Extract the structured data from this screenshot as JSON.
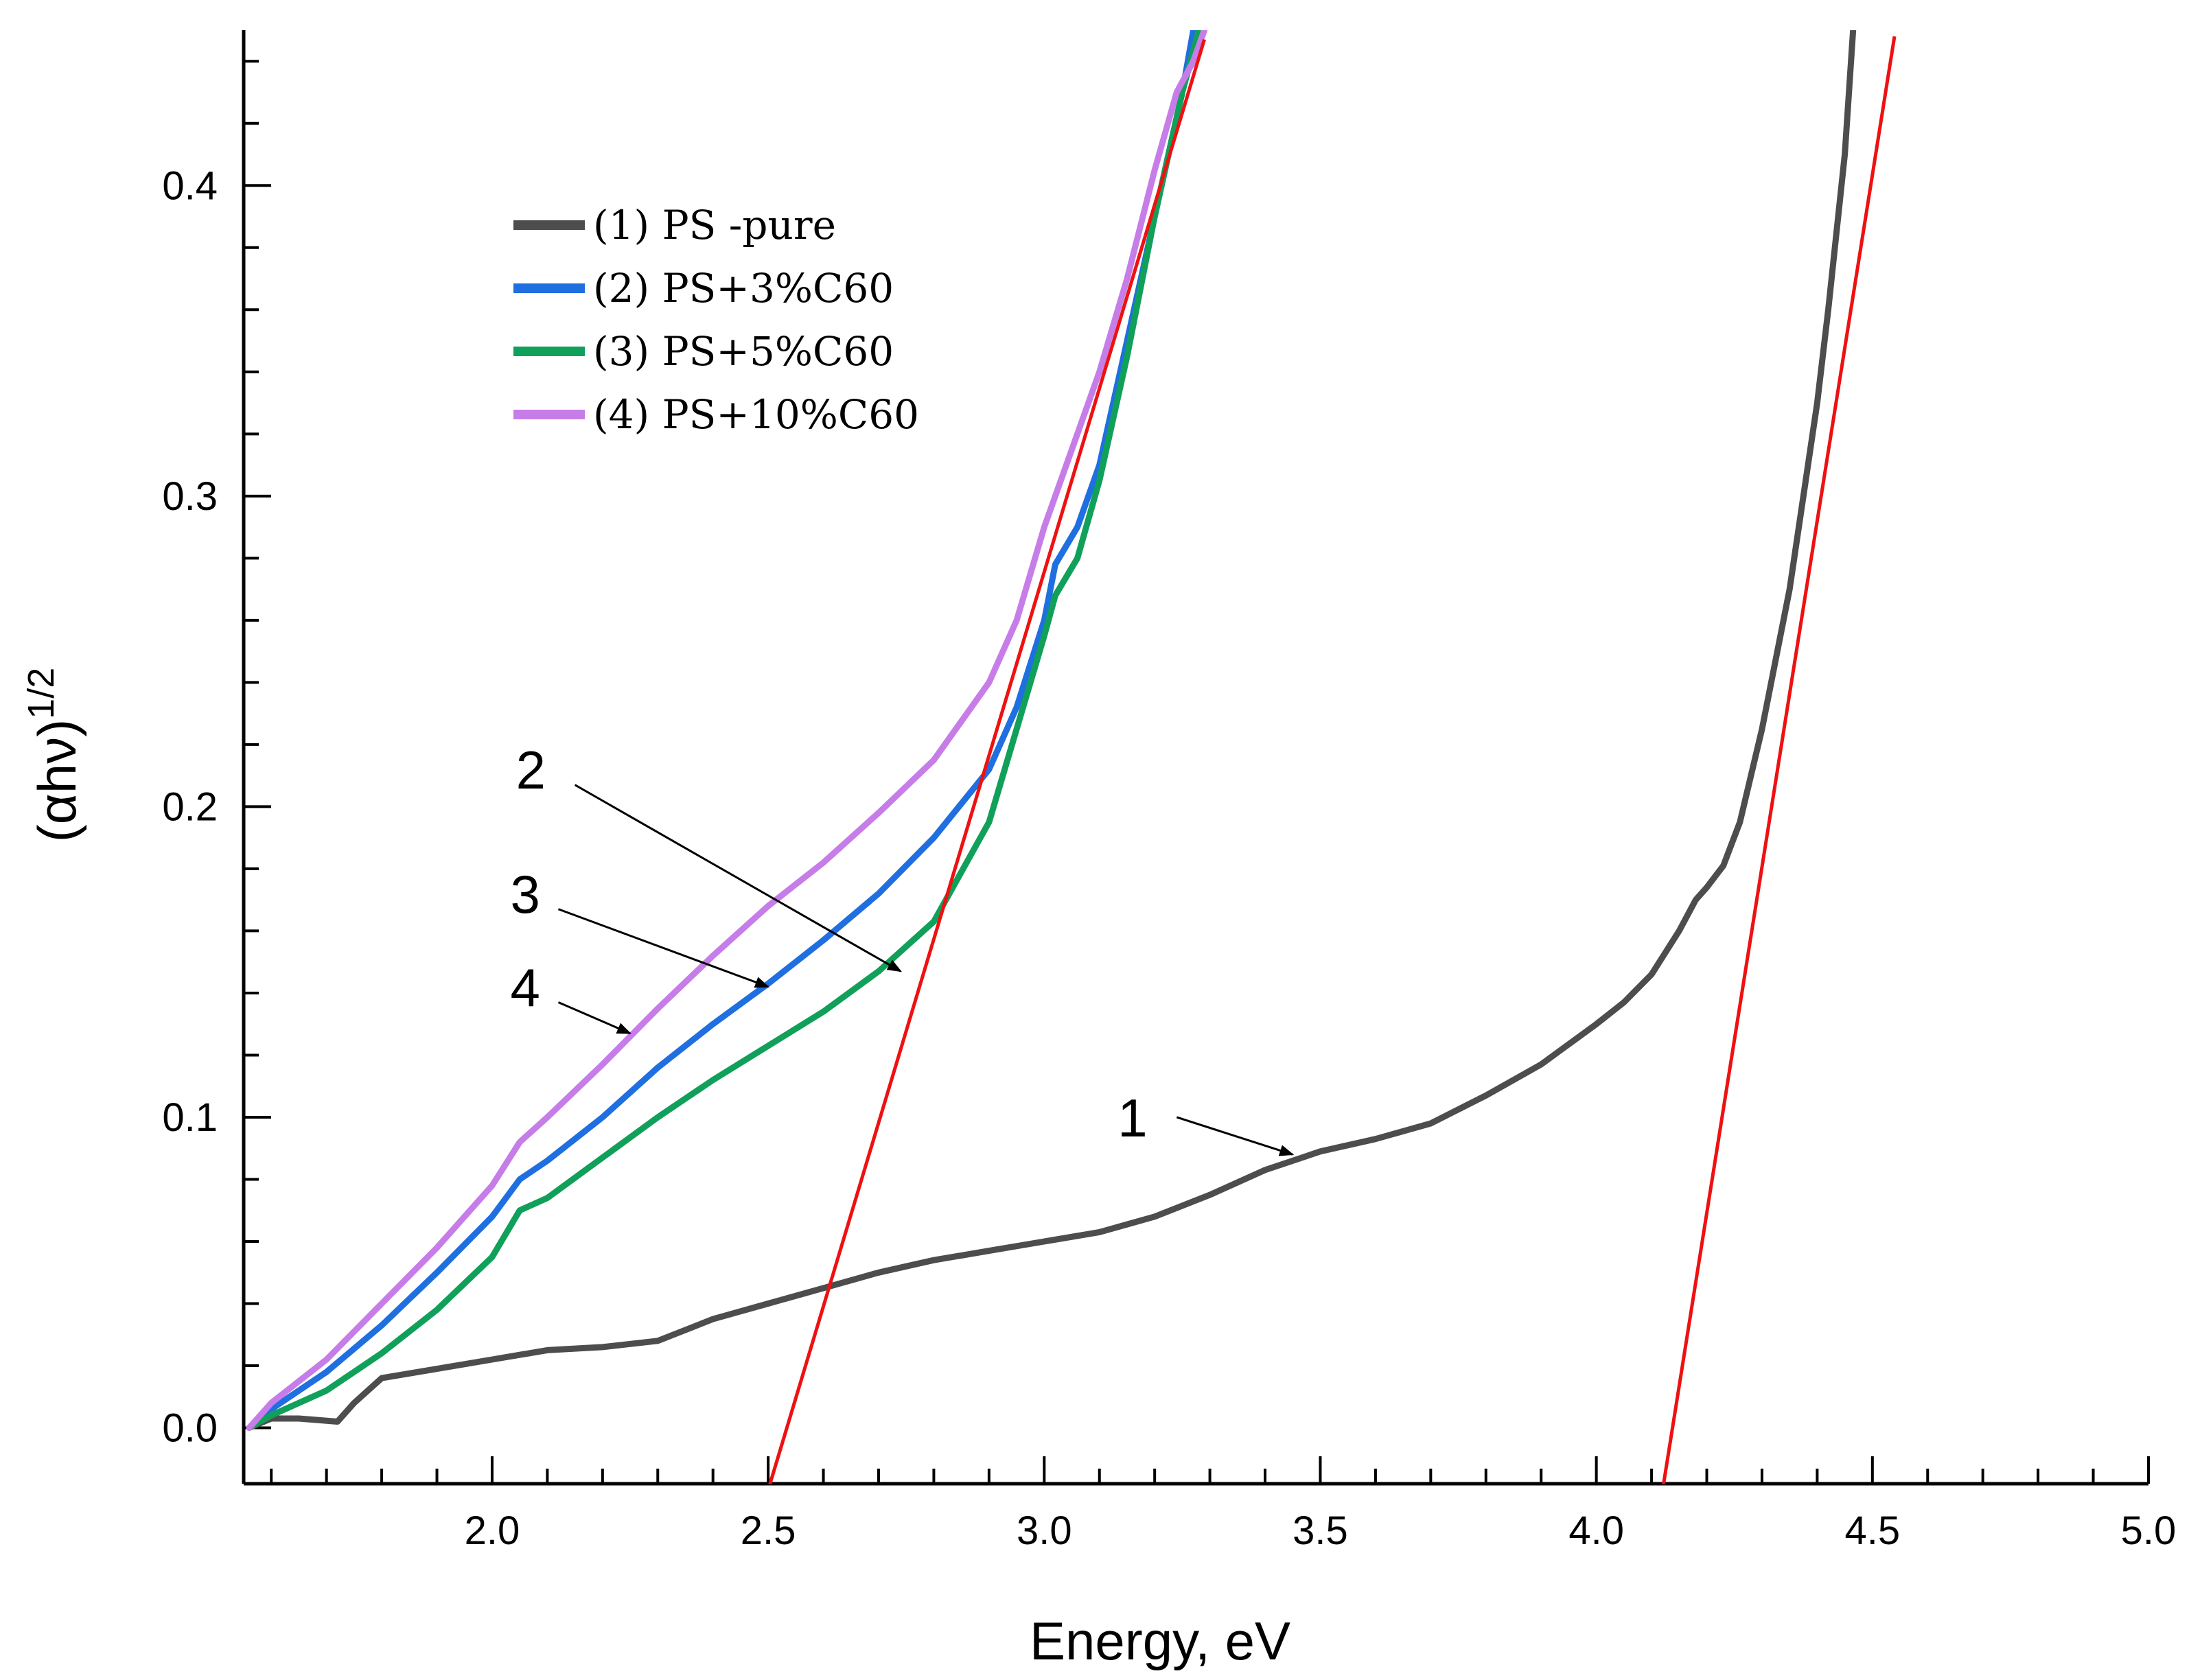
{
  "chart_data": {
    "type": "line",
    "xlabel": "Energy, eV",
    "ylabel_base": "(αhν)",
    "ylabel_sup": "1/2",
    "xlim": [
      1.55,
      5.0
    ],
    "ylim": [
      -0.018,
      0.45
    ],
    "x_ticks": [
      2.0,
      2.5,
      3.0,
      3.5,
      4.0,
      4.5,
      5.0
    ],
    "x_tick_labels": [
      "2.0",
      "2.5",
      "3.0",
      "3.5",
      "4.0",
      "4.5",
      "5.0"
    ],
    "x_minor_step": 0.1,
    "y_ticks": [
      0.0,
      0.1,
      0.2,
      0.3,
      0.4
    ],
    "y_tick_labels": [
      "0.0",
      "0.1",
      "0.2",
      "0.3",
      "0.4"
    ],
    "y_minor_step": 0.02,
    "grid": false,
    "legend_position": "top-left",
    "series": [
      {
        "id": "s1",
        "name": "(1) PS -pure",
        "color": "#4d4d4d",
        "x": [
          1.56,
          1.6,
          1.65,
          1.72,
          1.75,
          1.8,
          1.9,
          2.0,
          2.1,
          2.2,
          2.3,
          2.4,
          2.5,
          2.6,
          2.7,
          2.8,
          2.9,
          3.0,
          3.1,
          3.2,
          3.3,
          3.4,
          3.5,
          3.6,
          3.7,
          3.8,
          3.9,
          4.0,
          4.05,
          4.1,
          4.15,
          4.18,
          4.2,
          4.23,
          4.26,
          4.3,
          4.35,
          4.4,
          4.42,
          4.45,
          4.465
        ],
        "y": [
          0.0,
          0.003,
          0.003,
          0.002,
          0.008,
          0.016,
          0.019,
          0.022,
          0.025,
          0.026,
          0.028,
          0.035,
          0.04,
          0.045,
          0.05,
          0.054,
          0.057,
          0.06,
          0.063,
          0.068,
          0.075,
          0.083,
          0.089,
          0.093,
          0.098,
          0.107,
          0.117,
          0.13,
          0.137,
          0.146,
          0.16,
          0.17,
          0.174,
          0.181,
          0.195,
          0.225,
          0.27,
          0.33,
          0.36,
          0.41,
          0.45
        ]
      },
      {
        "id": "s2",
        "name": "(2) PS+3%C60",
        "color": "#1f6fe0",
        "x": [
          1.56,
          1.6,
          1.7,
          1.8,
          1.9,
          2.0,
          2.05,
          2.1,
          2.2,
          2.3,
          2.4,
          2.5,
          2.6,
          2.7,
          2.8,
          2.9,
          2.95,
          3.0,
          3.02,
          3.06,
          3.1,
          3.15,
          3.2,
          3.25,
          3.27
        ],
        "y": [
          0.0,
          0.006,
          0.018,
          0.033,
          0.05,
          0.068,
          0.08,
          0.086,
          0.1,
          0.116,
          0.13,
          0.143,
          0.157,
          0.172,
          0.19,
          0.212,
          0.232,
          0.26,
          0.278,
          0.29,
          0.31,
          0.35,
          0.39,
          0.43,
          0.45
        ]
      },
      {
        "id": "s3",
        "name": "(3) PS+5%C60",
        "color": "#10a05a",
        "x": [
          1.56,
          1.6,
          1.7,
          1.8,
          1.9,
          2.0,
          2.05,
          2.1,
          2.2,
          2.3,
          2.4,
          2.5,
          2.6,
          2.7,
          2.8,
          2.9,
          2.95,
          3.0,
          3.02,
          3.06,
          3.1,
          3.15,
          3.2,
          3.25,
          3.28
        ],
        "y": [
          0.0,
          0.004,
          0.012,
          0.024,
          0.038,
          0.055,
          0.07,
          0.074,
          0.087,
          0.1,
          0.112,
          0.123,
          0.134,
          0.147,
          0.163,
          0.195,
          0.225,
          0.255,
          0.268,
          0.28,
          0.305,
          0.345,
          0.39,
          0.43,
          0.45
        ]
      },
      {
        "id": "s4",
        "name": "(4) PS+10%C60",
        "color": "#c77de8",
        "x": [
          1.56,
          1.6,
          1.7,
          1.8,
          1.9,
          2.0,
          2.05,
          2.1,
          2.2,
          2.3,
          2.4,
          2.5,
          2.6,
          2.7,
          2.8,
          2.9,
          2.95,
          3.0,
          3.05,
          3.1,
          3.15,
          3.2,
          3.24,
          3.27,
          3.29
        ],
        "y": [
          0.0,
          0.008,
          0.022,
          0.04,
          0.058,
          0.078,
          0.092,
          0.1,
          0.117,
          0.135,
          0.152,
          0.168,
          0.182,
          0.198,
          0.215,
          0.24,
          0.26,
          0.29,
          0.315,
          0.34,
          0.37,
          0.405,
          0.43,
          0.44,
          0.45
        ]
      }
    ],
    "fit_lines": [
      {
        "id": "fit-pc60",
        "color": "#ee1111",
        "x": [
          2.5,
          3.29
        ],
        "y": [
          -0.02,
          0.447
        ]
      },
      {
        "id": "fit-ps",
        "color": "#ee1111",
        "x": [
          4.12,
          4.54
        ],
        "y": [
          -0.02,
          0.448
        ]
      }
    ],
    "annotations": [
      {
        "label": "1",
        "label_x": 3.16,
        "label_y": 0.1,
        "arrow_from": [
          3.24,
          0.1
        ],
        "arrow_to": [
          3.45,
          0.088
        ]
      },
      {
        "label": "2",
        "label_x": 2.07,
        "label_y": 0.212,
        "arrow_from": [
          2.15,
          0.207
        ],
        "arrow_to": [
          2.74,
          0.147
        ]
      },
      {
        "label": "3",
        "label_x": 2.06,
        "label_y": 0.172,
        "arrow_from": [
          2.12,
          0.167
        ],
        "arrow_to": [
          2.5,
          0.142
        ]
      },
      {
        "label": "4",
        "label_x": 2.06,
        "label_y": 0.142,
        "arrow_from": [
          2.12,
          0.137
        ],
        "arrow_to": [
          2.25,
          0.127
        ]
      }
    ]
  }
}
